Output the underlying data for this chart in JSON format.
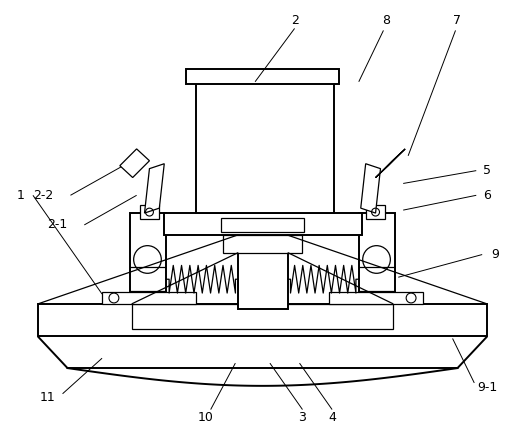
{
  "background_color": "#ffffff",
  "line_color": "#000000",
  "lw_main": 1.4,
  "lw_thin": 0.9,
  "lw_label": 0.7,
  "fs": 9.0
}
